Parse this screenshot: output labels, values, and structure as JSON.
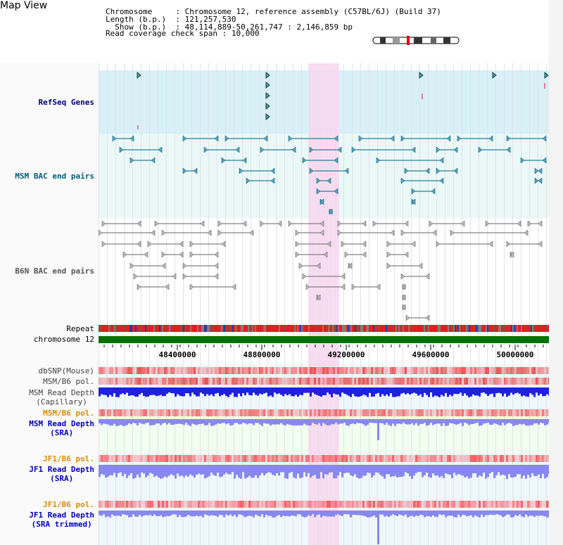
{
  "title": "Map View",
  "header": {
    "lines": [
      {
        "label": "Chromosome     ",
        "value": "Chromosome 12, reference assembly (C57BL/6J) (Build 37)"
      },
      {
        "label": "Length (b.p.)  ",
        "value": "121,257,530"
      },
      {
        "label": "  Show (b.p.)  ",
        "value": "48,114,889-50,261,747 : 2,146,859 bp"
      }
    ],
    "coverage_label": "Read coverage check span",
    "coverage_value": "10,000"
  },
  "tracks": [
    {
      "name": "RefSeq Genes",
      "color": "#00007f",
      "bg": "#d8f0f8"
    },
    {
      "name": "MSM BAC end pairs",
      "color": "#005a7a",
      "bg": "#eaf8f8"
    },
    {
      "name": "B6N BAC end pairs",
      "color": "#555555",
      "bg": "#ffffff"
    },
    {
      "name": "Repeat",
      "color": "#000000"
    },
    {
      "name": "chromosome 12",
      "color": "#000000"
    }
  ],
  "ruler": {
    "ticks": [
      "48400000",
      "48800000",
      "49200000",
      "49600000",
      "50000000"
    ]
  },
  "lower_tracks": [
    {
      "name": "dbSNP(Mouse)",
      "color": "#444444"
    },
    {
      "name": "MSM/B6 pol.",
      "color": "#444444"
    },
    {
      "name": "MSM Read Depth",
      "sub": "(Capillary)",
      "color": "#444444"
    },
    {
      "name": "MSM/B6 pol.",
      "color": "#e08a00"
    },
    {
      "name": "MSM Read Depth",
      "sub": "(SRA)",
      "color": "#0000c0"
    },
    {
      "name": "JF1/B6 pol.",
      "color": "#e08a00"
    },
    {
      "name": "JF1 Read Depth",
      "sub": "(SRA)",
      "color": "#0000c0"
    },
    {
      "name": "JF1/B6 pol.",
      "color": "#e08a00"
    },
    {
      "name": "JF1 Read Depth",
      "sub": "(SRA trimmed)",
      "color": "#0000c0"
    }
  ],
  "colors": {
    "highlight": "#f8d8f0",
    "chromosome": "#007000",
    "depth_dark": "#2020e0",
    "depth_light": "#8888ee",
    "snp": "#f08080"
  }
}
